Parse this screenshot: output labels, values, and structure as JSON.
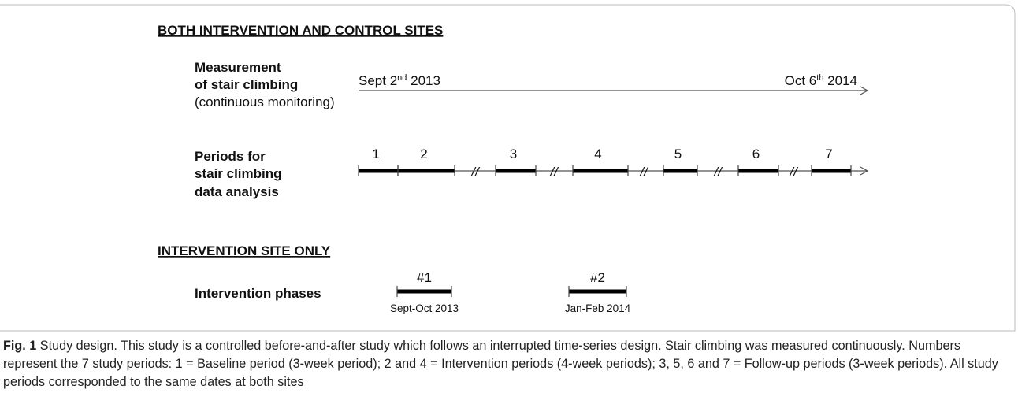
{
  "sections": [
    {
      "heading": "BOTH INTERVENTION AND CONTROL SITES"
    },
    {
      "heading": "INTERVENTION SITE ONLY"
    }
  ],
  "measurement": {
    "label": [
      "Measurement",
      "of stair climbing"
    ],
    "note": "(continuous monitoring)",
    "start": {
      "text": "Sept 2",
      "suffix": "nd",
      "year": " 2013"
    },
    "end": {
      "text": "Oct 6",
      "suffix": "th",
      "year": " 2014"
    }
  },
  "periods": {
    "label": [
      "Periods for",
      "stair climbing",
      "data analysis"
    ],
    "items": [
      "1",
      "2",
      "3",
      "4",
      "5",
      "6",
      "7"
    ],
    "break": "//"
  },
  "phases": {
    "label": "Intervention phases",
    "items": [
      {
        "name": "#1",
        "dates": "Sept-Oct 2013"
      },
      {
        "name": "#2",
        "dates": "Jan-Feb 2014"
      }
    ]
  },
  "caption": {
    "prefix": "Fig. 1",
    "text": " Study design. This study is a controlled before-and-after study which follows an interrupted time-series design. Stair climbing was measured continuously. Numbers represent the 7 study periods: 1 = Baseline period (3-week period); 2 and 4 = Intervention periods (4-week periods); 3, 5, 6 and 7 = Follow-up periods (3-week periods). All study periods corresponded to the same dates at both sites"
  }
}
